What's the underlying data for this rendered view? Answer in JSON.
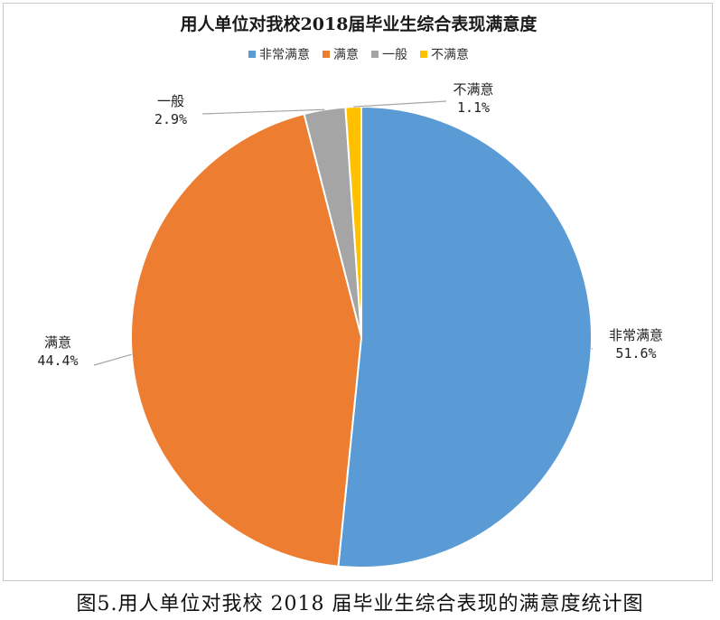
{
  "chart_data": {
    "type": "pie",
    "title": "用人单位对我校2018届毕业生综合表现满意度",
    "legend_position": "top",
    "categories": [
      "非常满意",
      "满意",
      "一般",
      "不满意"
    ],
    "values": [
      51.6,
      44.4,
      2.9,
      1.1
    ],
    "value_labels": [
      "51.6%",
      "44.4%",
      "2.9%",
      "1.1%"
    ],
    "colors": [
      "#5b9bd5",
      "#ed7d31",
      "#a5a5a5",
      "#ffc000"
    ]
  },
  "caption": "图5.用人单位对我校 2018 届毕业生综合表现的满意度统计图"
}
